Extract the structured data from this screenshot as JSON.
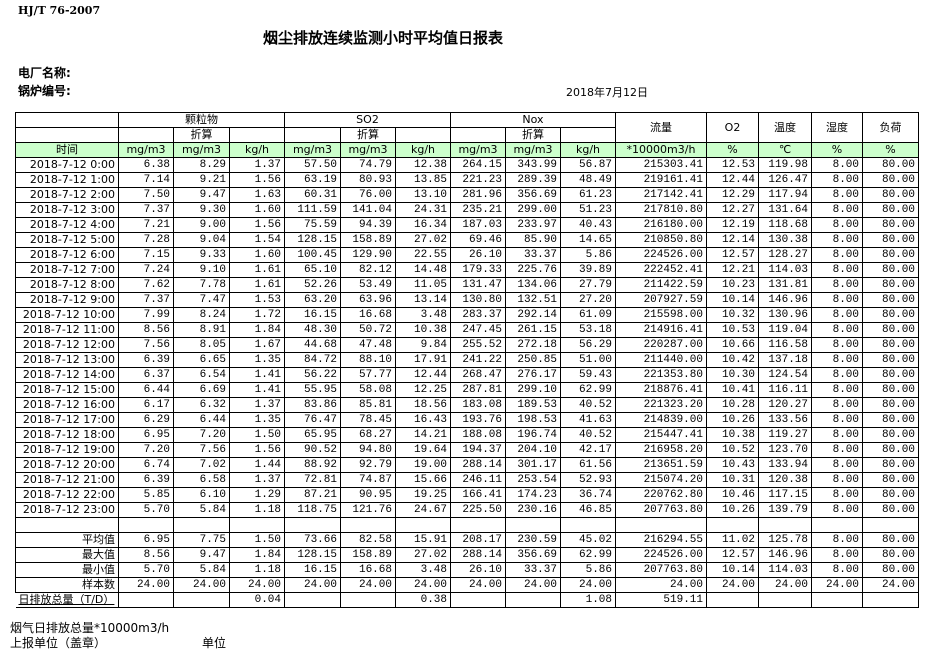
{
  "header": {
    "standard": "HJ/T  76-2007",
    "title": "烟尘排放连续监测小时平均值日报表",
    "plant_label": "电厂名称:",
    "boiler_label": "锅炉编号:",
    "date": "2018年7月12日"
  },
  "table": {
    "groups": [
      "颗粒物",
      "SO2",
      "Nox"
    ],
    "converted_label": "折算",
    "flow_label": "流量",
    "o2_label": "O2",
    "temp_label": "温度",
    "humidity_label": "湿度",
    "load_label": "负荷",
    "time_label": "时间",
    "units": [
      "mg/m3",
      "mg/m3",
      "kg/h",
      "mg/m3",
      "mg/m3",
      "kg/h",
      "mg/m3",
      "mg/m3",
      "kg/h",
      "*10000m3/h",
      "%",
      "℃",
      "%",
      "%"
    ],
    "rows": [
      [
        "2018-7-12 0:00",
        "6.38",
        "8.29",
        "1.37",
        "57.50",
        "74.79",
        "12.38",
        "264.15",
        "343.99",
        "56.87",
        "215303.41",
        "12.53",
        "119.98",
        "8.00",
        "80.00"
      ],
      [
        "2018-7-12 1:00",
        "7.14",
        "9.21",
        "1.56",
        "63.19",
        "80.93",
        "13.85",
        "221.23",
        "289.39",
        "48.49",
        "219161.41",
        "12.44",
        "126.47",
        "8.00",
        "80.00"
      ],
      [
        "2018-7-12 2:00",
        "7.50",
        "9.47",
        "1.63",
        "60.31",
        "76.00",
        "13.10",
        "281.96",
        "356.69",
        "61.23",
        "217142.41",
        "12.29",
        "117.94",
        "8.00",
        "80.00"
      ],
      [
        "2018-7-12 3:00",
        "7.37",
        "9.30",
        "1.60",
        "111.59",
        "141.04",
        "24.31",
        "235.21",
        "299.00",
        "51.23",
        "217810.80",
        "12.27",
        "131.64",
        "8.00",
        "80.00"
      ],
      [
        "2018-7-12 4:00",
        "7.21",
        "9.00",
        "1.56",
        "75.59",
        "94.39",
        "16.34",
        "187.03",
        "233.97",
        "40.43",
        "216180.00",
        "12.19",
        "118.68",
        "8.00",
        "80.00"
      ],
      [
        "2018-7-12 5:00",
        "7.28",
        "9.04",
        "1.54",
        "128.15",
        "158.89",
        "27.02",
        "69.46",
        "85.90",
        "14.65",
        "210850.80",
        "12.14",
        "130.38",
        "8.00",
        "80.00"
      ],
      [
        "2018-7-12 6:00",
        "7.15",
        "9.33",
        "1.60",
        "100.45",
        "129.90",
        "22.55",
        "26.10",
        "33.37",
        "5.86",
        "224526.00",
        "12.57",
        "128.27",
        "8.00",
        "80.00"
      ],
      [
        "2018-7-12 7:00",
        "7.24",
        "9.10",
        "1.61",
        "65.10",
        "82.12",
        "14.48",
        "179.33",
        "225.76",
        "39.89",
        "222452.41",
        "12.21",
        "114.03",
        "8.00",
        "80.00"
      ],
      [
        "2018-7-12 8:00",
        "7.62",
        "7.78",
        "1.61",
        "52.26",
        "53.49",
        "11.05",
        "131.47",
        "134.06",
        "27.79",
        "211422.59",
        "10.23",
        "131.81",
        "8.00",
        "80.00"
      ],
      [
        "2018-7-12 9:00",
        "7.37",
        "7.47",
        "1.53",
        "63.20",
        "63.96",
        "13.14",
        "130.80",
        "132.51",
        "27.20",
        "207927.59",
        "10.14",
        "146.96",
        "8.00",
        "80.00"
      ],
      [
        "2018-7-12 10:00",
        "7.99",
        "8.24",
        "1.72",
        "16.15",
        "16.68",
        "3.48",
        "283.37",
        "292.14",
        "61.09",
        "215598.00",
        "10.32",
        "130.96",
        "8.00",
        "80.00"
      ],
      [
        "2018-7-12 11:00",
        "8.56",
        "8.91",
        "1.84",
        "48.30",
        "50.72",
        "10.38",
        "247.45",
        "261.15",
        "53.18",
        "214916.41",
        "10.53",
        "119.04",
        "8.00",
        "80.00"
      ],
      [
        "2018-7-12 12:00",
        "7.56",
        "8.05",
        "1.67",
        "44.68",
        "47.48",
        "9.84",
        "255.52",
        "272.18",
        "56.29",
        "220287.00",
        "10.66",
        "116.58",
        "8.00",
        "80.00"
      ],
      [
        "2018-7-12 13:00",
        "6.39",
        "6.65",
        "1.35",
        "84.72",
        "88.10",
        "17.91",
        "241.22",
        "250.85",
        "51.00",
        "211440.00",
        "10.42",
        "137.18",
        "8.00",
        "80.00"
      ],
      [
        "2018-7-12 14:00",
        "6.37",
        "6.54",
        "1.41",
        "56.22",
        "57.77",
        "12.44",
        "268.47",
        "276.17",
        "59.43",
        "221353.80",
        "10.30",
        "124.54",
        "8.00",
        "80.00"
      ],
      [
        "2018-7-12 15:00",
        "6.44",
        "6.69",
        "1.41",
        "55.95",
        "58.08",
        "12.25",
        "287.81",
        "299.10",
        "62.99",
        "218876.41",
        "10.41",
        "116.11",
        "8.00",
        "80.00"
      ],
      [
        "2018-7-12 16:00",
        "6.17",
        "6.32",
        "1.37",
        "83.86",
        "85.81",
        "18.56",
        "183.08",
        "189.53",
        "40.52",
        "221323.20",
        "10.28",
        "120.27",
        "8.00",
        "80.00"
      ],
      [
        "2018-7-12 17:00",
        "6.29",
        "6.44",
        "1.35",
        "76.47",
        "78.45",
        "16.43",
        "193.76",
        "198.53",
        "41.63",
        "214839.00",
        "10.26",
        "133.56",
        "8.00",
        "80.00"
      ],
      [
        "2018-7-12 18:00",
        "6.95",
        "7.20",
        "1.50",
        "65.95",
        "68.27",
        "14.21",
        "188.08",
        "196.74",
        "40.52",
        "215447.41",
        "10.38",
        "119.27",
        "8.00",
        "80.00"
      ],
      [
        "2018-7-12 19:00",
        "7.20",
        "7.56",
        "1.56",
        "90.52",
        "94.80",
        "19.64",
        "194.37",
        "204.10",
        "42.17",
        "216958.20",
        "10.52",
        "123.70",
        "8.00",
        "80.00"
      ],
      [
        "2018-7-12 20:00",
        "6.74",
        "7.02",
        "1.44",
        "88.92",
        "92.79",
        "19.00",
        "288.14",
        "301.17",
        "61.56",
        "213651.59",
        "10.43",
        "133.94",
        "8.00",
        "80.00"
      ],
      [
        "2018-7-12 21:00",
        "6.39",
        "6.58",
        "1.37",
        "72.81",
        "74.87",
        "15.66",
        "246.11",
        "253.54",
        "52.93",
        "215074.20",
        "10.31",
        "120.38",
        "8.00",
        "80.00"
      ],
      [
        "2018-7-12 22:00",
        "5.85",
        "6.10",
        "1.29",
        "87.21",
        "90.95",
        "19.25",
        "166.41",
        "174.23",
        "36.74",
        "220762.80",
        "10.46",
        "117.15",
        "8.00",
        "80.00"
      ],
      [
        "2018-7-12 23:00",
        "5.70",
        "5.84",
        "1.18",
        "118.75",
        "121.76",
        "24.67",
        "225.50",
        "230.16",
        "46.85",
        "207763.80",
        "10.26",
        "139.79",
        "8.00",
        "80.00"
      ]
    ],
    "summary": [
      [
        "平均值",
        "6.95",
        "7.75",
        "1.50",
        "73.66",
        "82.58",
        "15.91",
        "208.17",
        "230.59",
        "45.02",
        "216294.55",
        "11.02",
        "125.78",
        "8.00",
        "80.00"
      ],
      [
        "最大值",
        "8.56",
        "9.47",
        "1.84",
        "128.15",
        "158.89",
        "27.02",
        "288.14",
        "356.69",
        "62.99",
        "224526.00",
        "12.57",
        "146.96",
        "8.00",
        "80.00"
      ],
      [
        "最小值",
        "5.70",
        "5.84",
        "1.18",
        "16.15",
        "16.68",
        "3.48",
        "26.10",
        "33.37",
        "5.86",
        "207763.80",
        "10.14",
        "114.03",
        "8.00",
        "80.00"
      ],
      [
        "样本数",
        "24.00",
        "24.00",
        "24.00",
        "24.00",
        "24.00",
        "24.00",
        "24.00",
        "24.00",
        "24.00",
        "24.00",
        "24.00",
        "24.00",
        "24.00",
        "24.00"
      ]
    ],
    "daily": [
      "日排放总量（T/D）",
      "",
      "",
      "0.04",
      "",
      "",
      "0.38",
      "",
      "",
      "1.08",
      "519.11",
      "",
      "",
      "",
      ""
    ]
  },
  "footer": {
    "gas_total": "烟气日排放总量*10000m3/h",
    "reporting_unit": "上报单位（盖章）",
    "unit": "单位"
  },
  "colors": {
    "unit_row_bg": "#ccffcc"
  }
}
